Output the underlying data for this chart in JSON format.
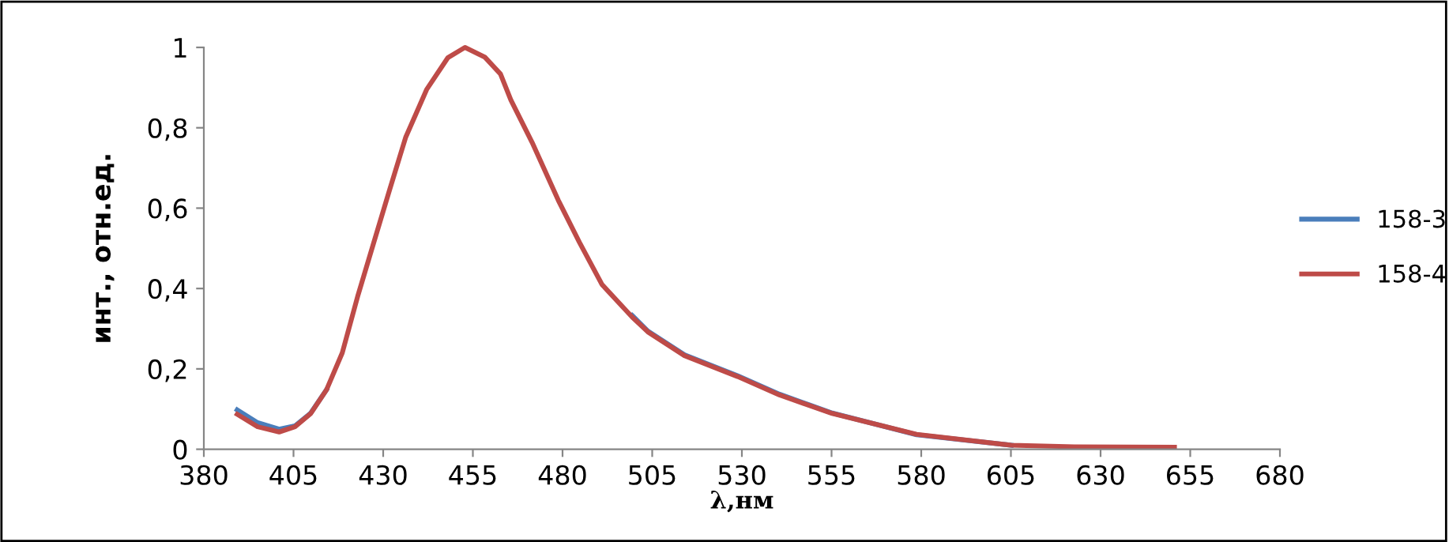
{
  "chart_data": {
    "type": "line",
    "xlabel": "λ,нм",
    "ylabel": "инт., отн.ед.",
    "xlim": [
      380,
      680
    ],
    "xticks": [
      380,
      405,
      430,
      455,
      480,
      505,
      530,
      555,
      580,
      605,
      630,
      655,
      680
    ],
    "ylim": [
      0,
      1
    ],
    "yticks": [
      0,
      {
        "value": 0.2,
        "label": "0,2"
      },
      {
        "value": 0.4,
        "label": "0,4"
      },
      {
        "value": 0.6,
        "label": "0,6"
      },
      {
        "value": 0.8,
        "label": "0,8"
      },
      1
    ],
    "x": [
      389.3,
      395,
      401,
      405.4,
      409.8,
      414.2,
      418.6,
      423,
      427.4,
      431.8,
      436.3,
      442.1,
      448,
      452.8,
      458.3,
      462.7,
      465.6,
      471.5,
      478.8,
      484.7,
      491,
      499.4,
      503.8,
      514,
      528.8,
      540.5,
      555.2,
      578.7,
      605.1,
      622.7,
      650.6
    ],
    "series": [
      {
        "name": "158-3",
        "color": "#4a7ebb",
        "values": [
          0.098,
          0.066,
          0.05,
          0.058,
          0.09,
          0.148,
          null,
          null,
          null,
          null,
          null,
          null,
          null,
          null,
          null,
          null,
          null,
          null,
          null,
          null,
          null,
          0.333,
          0.294,
          0.235,
          0.183,
          0.137,
          0.09,
          0.036,
          0.01,
          null,
          null
        ]
      },
      {
        "name": "158-4",
        "color": "#be4b48",
        "values": [
          0.087,
          0.056,
          0.043,
          0.056,
          0.089,
          0.148,
          0.24,
          0.384,
          0.515,
          0.646,
          0.777,
          0.895,
          0.974,
          1.0,
          0.976,
          0.934,
          0.869,
          0.764,
          0.62,
          0.515,
          0.41,
          0.329,
          0.292,
          0.233,
          0.181,
          0.135,
          0.089,
          0.037,
          0.01,
          0.006,
          0.005
        ]
      }
    ],
    "legend": "right",
    "grid": false
  }
}
